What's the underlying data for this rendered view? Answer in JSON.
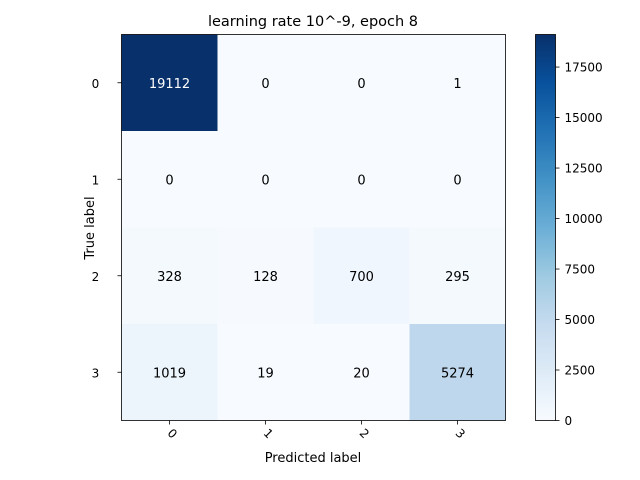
{
  "chart_data": {
    "type": "heatmap",
    "title": "learning rate 10^-9, epoch 8",
    "xlabel": "Predicted label",
    "ylabel": "True label",
    "x_categories": [
      "0",
      "1",
      "2",
      "3"
    ],
    "y_categories": [
      "0",
      "1",
      "2",
      "3"
    ],
    "values": [
      [
        19112,
        0,
        0,
        1
      ],
      [
        0,
        0,
        0,
        0
      ],
      [
        328,
        128,
        700,
        295
      ],
      [
        1019,
        19,
        20,
        5274
      ]
    ],
    "colormap": "Blues",
    "color_range": [
      0,
      19112
    ],
    "colorbar_ticks": [
      0,
      2500,
      5000,
      7500,
      10000,
      12500,
      15000,
      17500
    ],
    "grid": false
  }
}
